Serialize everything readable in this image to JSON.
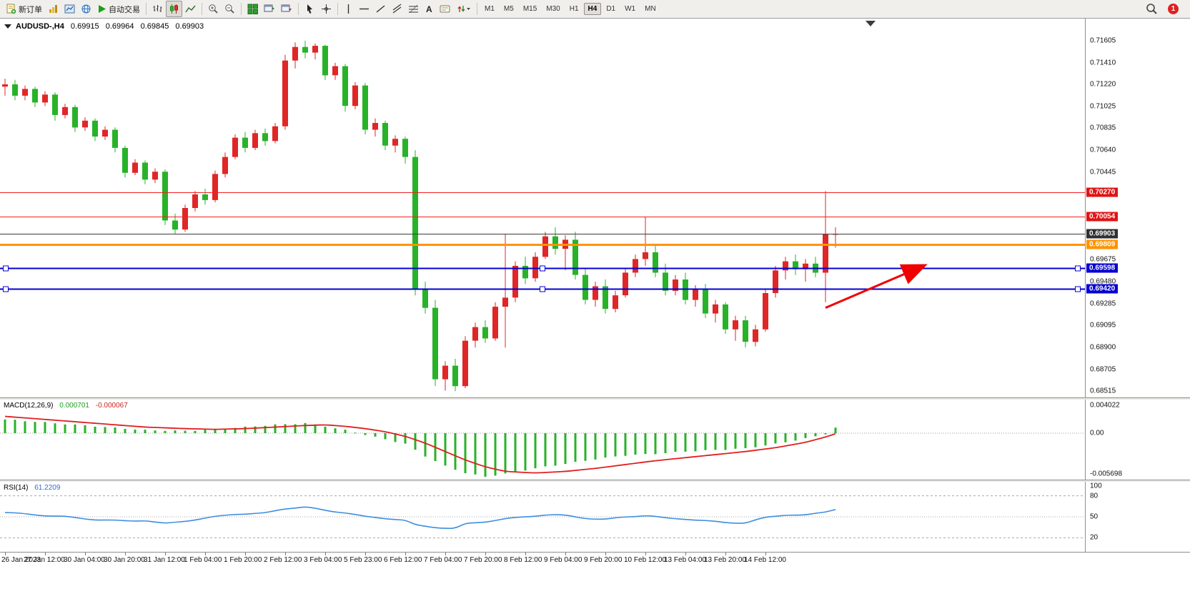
{
  "toolbar": {
    "new_order": "新订单",
    "autotrading": "自动交易",
    "timeframes": [
      "M1",
      "M5",
      "M15",
      "M30",
      "H1",
      "H4",
      "D1",
      "W1",
      "MN"
    ],
    "active_timeframe": "H4",
    "notification_count": "1",
    "icon_names": [
      "new-order",
      "profiles",
      "market-watch",
      "navigator",
      "autotrading",
      "bar-chart",
      "candlestick-chart",
      "line-chart",
      "zoom-in",
      "zoom-out",
      "tile-windows",
      "cascade-windows",
      "arrange-windows",
      "cursor",
      "crosshair",
      "vertical-line",
      "horizontal-line",
      "trendline",
      "equidistant-channel",
      "fibonacci-retracement",
      "text",
      "text-label",
      "arrows",
      "search",
      "notifications"
    ]
  },
  "chart": {
    "symbol": "AUDUSD-,H4",
    "open": "0.69915",
    "high": "0.69964",
    "low": "0.69845",
    "close": "0.69903",
    "type": "candlestick",
    "colors": {
      "up": "#e02626",
      "down": "#28b228"
    },
    "price_axis": {
      "max": 0.718,
      "min": 0.6846,
      "ticks": [
        "0.71605",
        "0.71410",
        "0.71220",
        "0.71025",
        "0.70835",
        "0.70640",
        "0.70445",
        "0.69675",
        "0.69480",
        "0.69285",
        "0.69095",
        "0.68900",
        "0.68705",
        "0.68515"
      ]
    },
    "hlines": [
      {
        "label": "0.70270",
        "color": "#f02020",
        "width": 1,
        "badge": "#e01414",
        "selected": false
      },
      {
        "label": "0.70054",
        "color": "#f02020",
        "width": 1,
        "badge": "#e01414",
        "selected": false
      },
      {
        "label": "0.69903",
        "color": "#3c3c3c",
        "width": 1,
        "badge": "#2f2f2f",
        "selected": false
      },
      {
        "label": "0.69809",
        "color": "#ff9300",
        "width": 3,
        "badge": "#ff9300",
        "selected": false
      },
      {
        "label": "0.69598",
        "color": "#0400d0",
        "width": 2,
        "badge": "#0400d0",
        "selected": true
      },
      {
        "label": "0.69420",
        "color": "#0400d0",
        "width": 2,
        "badge": "#0400d0",
        "selected": true
      }
    ],
    "candles": [
      [
        0.712,
        0.7127,
        0.7112,
        0.7122
      ],
      [
        0.7122,
        0.7126,
        0.7108,
        0.7112
      ],
      [
        0.7112,
        0.7121,
        0.7108,
        0.7118
      ],
      [
        0.7118,
        0.712,
        0.7102,
        0.7106
      ],
      [
        0.7106,
        0.7116,
        0.7103,
        0.7113
      ],
      [
        0.7113,
        0.7115,
        0.709,
        0.7095
      ],
      [
        0.7095,
        0.7105,
        0.7092,
        0.7102
      ],
      [
        0.7102,
        0.7104,
        0.708,
        0.7084
      ],
      [
        0.7084,
        0.7093,
        0.7081,
        0.709
      ],
      [
        0.709,
        0.7092,
        0.7072,
        0.7076
      ],
      [
        0.7076,
        0.7085,
        0.7073,
        0.7082
      ],
      [
        0.7082,
        0.7084,
        0.7062,
        0.7066
      ],
      [
        0.7066,
        0.7068,
        0.704,
        0.7044
      ],
      [
        0.7044,
        0.7056,
        0.7042,
        0.7053
      ],
      [
        0.7053,
        0.7055,
        0.7034,
        0.7038
      ],
      [
        0.7038,
        0.7048,
        0.7035,
        0.7045
      ],
      [
        0.7045,
        0.7047,
        0.6998,
        0.7002
      ],
      [
        0.7002,
        0.7008,
        0.699,
        0.6994
      ],
      [
        0.6994,
        0.7016,
        0.6992,
        0.7013
      ],
      [
        0.7013,
        0.7028,
        0.701,
        0.7025
      ],
      [
        0.7025,
        0.703,
        0.7016,
        0.702
      ],
      [
        0.702,
        0.7046,
        0.7018,
        0.7043
      ],
      [
        0.7043,
        0.7062,
        0.704,
        0.7058
      ],
      [
        0.7058,
        0.7078,
        0.7056,
        0.7075
      ],
      [
        0.7075,
        0.708,
        0.7062,
        0.7066
      ],
      [
        0.7066,
        0.7082,
        0.7064,
        0.7079
      ],
      [
        0.7079,
        0.7083,
        0.7068,
        0.7072
      ],
      [
        0.7072,
        0.7088,
        0.707,
        0.7085
      ],
      [
        0.7085,
        0.7148,
        0.7082,
        0.7143
      ],
      [
        0.7143,
        0.7159,
        0.7136,
        0.7155
      ],
      [
        0.7155,
        0.71605,
        0.7145,
        0.715
      ],
      [
        0.715,
        0.7158,
        0.7144,
        0.7156
      ],
      [
        0.7156,
        0.7157,
        0.7126,
        0.713
      ],
      [
        0.713,
        0.7141,
        0.7126,
        0.7138
      ],
      [
        0.7138,
        0.714,
        0.7098,
        0.7103
      ],
      [
        0.7103,
        0.7124,
        0.71,
        0.7121
      ],
      [
        0.7121,
        0.7123,
        0.7078,
        0.7082
      ],
      [
        0.7082,
        0.7092,
        0.7076,
        0.7088
      ],
      [
        0.7088,
        0.709,
        0.7064,
        0.7068
      ],
      [
        0.7068,
        0.7077,
        0.7062,
        0.7074
      ],
      [
        0.7074,
        0.7076,
        0.7052,
        0.7058
      ],
      [
        0.7058,
        0.7064,
        0.6936,
        0.6942
      ],
      [
        0.6942,
        0.6948,
        0.692,
        0.6925
      ],
      [
        0.6925,
        0.6932,
        0.6856,
        0.6862
      ],
      [
        0.6862,
        0.6878,
        0.6852,
        0.6874
      ],
      [
        0.6874,
        0.688,
        0.68515,
        0.6856
      ],
      [
        0.6856,
        0.69,
        0.6854,
        0.6896
      ],
      [
        0.6896,
        0.6912,
        0.689,
        0.6908
      ],
      [
        0.6908,
        0.6914,
        0.6894,
        0.6898
      ],
      [
        0.6898,
        0.693,
        0.6896,
        0.6926
      ],
      [
        0.6926,
        0.699,
        0.689,
        0.6934
      ],
      [
        0.6934,
        0.6966,
        0.693,
        0.6962
      ],
      [
        0.6962,
        0.697,
        0.6946,
        0.6951
      ],
      [
        0.6951,
        0.6974,
        0.6948,
        0.697
      ],
      [
        0.697,
        0.6992,
        0.6968,
        0.6988
      ],
      [
        0.6988,
        0.6996,
        0.6972,
        0.6977
      ],
      [
        0.6977,
        0.6989,
        0.6958,
        0.6985
      ],
      [
        0.6985,
        0.6992,
        0.695,
        0.6954
      ],
      [
        0.6954,
        0.696,
        0.6928,
        0.6932
      ],
      [
        0.6932,
        0.6948,
        0.6926,
        0.6944
      ],
      [
        0.6944,
        0.695,
        0.692,
        0.6924
      ],
      [
        0.6924,
        0.694,
        0.6921,
        0.6936
      ],
      [
        0.6936,
        0.696,
        0.6934,
        0.6956
      ],
      [
        0.6956,
        0.6972,
        0.6952,
        0.6968
      ],
      [
        0.6968,
        0.7005,
        0.6962,
        0.6974
      ],
      [
        0.6974,
        0.698,
        0.6952,
        0.6956
      ],
      [
        0.6956,
        0.6964,
        0.6936,
        0.694
      ],
      [
        0.694,
        0.6954,
        0.6936,
        0.695
      ],
      [
        0.695,
        0.6956,
        0.6928,
        0.6932
      ],
      [
        0.6932,
        0.6945,
        0.6926,
        0.6941
      ],
      [
        0.6941,
        0.6946,
        0.6916,
        0.692
      ],
      [
        0.692,
        0.6932,
        0.6912,
        0.6928
      ],
      [
        0.6928,
        0.693,
        0.6902,
        0.6906
      ],
      [
        0.6906,
        0.6918,
        0.6896,
        0.6914
      ],
      [
        0.6914,
        0.6918,
        0.689,
        0.6895
      ],
      [
        0.6895,
        0.691,
        0.6891,
        0.6906
      ],
      [
        0.6906,
        0.6942,
        0.6904,
        0.6938
      ],
      [
        0.6938,
        0.6962,
        0.6934,
        0.6958
      ],
      [
        0.6958,
        0.697,
        0.695,
        0.6966
      ],
      [
        0.6966,
        0.6972,
        0.6954,
        0.6959
      ],
      [
        0.6959,
        0.6968,
        0.6948,
        0.6964
      ],
      [
        0.6964,
        0.697,
        0.6952,
        0.6956
      ],
      [
        0.6956,
        0.7028,
        0.693,
        0.699
      ],
      [
        0.699,
        0.6996,
        0.6978,
        0.69903
      ]
    ],
    "time_labels": [
      "26 Jan 2023",
      "27 Jan 12:00",
      "30 Jan 04:00",
      "30 Jan 20:00",
      "31 Jan 12:00",
      "1 Feb 04:00",
      "1 Feb 20:00",
      "2 Feb 12:00",
      "3 Feb 04:00",
      "5 Feb 23:00",
      "6 Feb 12:00",
      "7 Feb 04:00",
      "7 Feb 20:00",
      "8 Feb 12:00",
      "9 Feb 04:00",
      "9 Feb 20:00",
      "10 Feb 12:00",
      "13 Feb 04:00",
      "13 Feb 20:00",
      "14 Feb 12:00"
    ],
    "trend_arrow": {
      "from_index": 82,
      "from_price": 0.6925,
      "to_index": 91.8,
      "to_price": 0.6962,
      "color": "#f00000"
    },
    "shift_marker_index": 86.5
  },
  "macd": {
    "name": "MACD(12,26,9)",
    "main": "0.000701",
    "signal": "-0.000067",
    "axis": [
      "0.004022",
      "0.00",
      "-0.005698"
    ],
    "range": {
      "max": 0.004022,
      "min": -0.005698
    },
    "hist": [
      [
        0,
        0.0018
      ],
      [
        5,
        0.0013
      ],
      [
        10,
        0.0008
      ],
      [
        14,
        0.0004
      ],
      [
        18,
        0.0003
      ],
      [
        21,
        0.0005
      ],
      [
        24,
        0.0008
      ],
      [
        27,
        0.0011
      ],
      [
        30,
        0.0013
      ],
      [
        32,
        0.0009
      ],
      [
        34,
        0.0004
      ],
      [
        36,
        -0.0002
      ],
      [
        38,
        -0.0008
      ],
      [
        40,
        -0.0014
      ],
      [
        42,
        -0.003
      ],
      [
        44,
        -0.0043
      ],
      [
        46,
        -0.0052
      ],
      [
        48,
        -0.0057
      ],
      [
        50,
        -0.0053
      ],
      [
        53,
        -0.0046
      ],
      [
        56,
        -0.004
      ],
      [
        59,
        -0.0034
      ],
      [
        62,
        -0.0029
      ],
      [
        65,
        -0.0027
      ],
      [
        68,
        -0.0024
      ],
      [
        71,
        -0.0022
      ],
      [
        74,
        -0.002
      ],
      [
        77,
        -0.0014
      ],
      [
        80,
        -0.0007
      ],
      [
        82,
        -0.0001
      ],
      [
        83,
        0.000701
      ]
    ],
    "signal_line": [
      [
        0,
        0.0022
      ],
      [
        5,
        0.0017
      ],
      [
        10,
        0.0012
      ],
      [
        14,
        0.0008
      ],
      [
        18,
        0.0006
      ],
      [
        21,
        0.0005
      ],
      [
        24,
        0.0006
      ],
      [
        27,
        0.0008
      ],
      [
        30,
        0.001
      ],
      [
        32,
        0.0011
      ],
      [
        34,
        0.0009
      ],
      [
        36,
        0.0006
      ],
      [
        38,
        0.0002
      ],
      [
        40,
        -0.0004
      ],
      [
        42,
        -0.0013
      ],
      [
        44,
        -0.0024
      ],
      [
        46,
        -0.0035
      ],
      [
        48,
        -0.0044
      ],
      [
        50,
        -0.005
      ],
      [
        53,
        -0.0052
      ],
      [
        56,
        -0.005
      ],
      [
        59,
        -0.0046
      ],
      [
        62,
        -0.0041
      ],
      [
        65,
        -0.0036
      ],
      [
        68,
        -0.0032
      ],
      [
        71,
        -0.0028
      ],
      [
        74,
        -0.0024
      ],
      [
        77,
        -0.0019
      ],
      [
        80,
        -0.0012
      ],
      [
        82,
        -0.0005
      ],
      [
        83,
        -6.7e-05
      ]
    ],
    "colors": {
      "histogram": "#28b228",
      "signal": "#e01f1f"
    }
  },
  "rsi": {
    "name": "RSI(14)",
    "value": "61.2209",
    "axis": [
      "100",
      "80",
      "50",
      "20"
    ],
    "levels": [
      80,
      50,
      20
    ],
    "color": "#3e8ede",
    "points": [
      [
        0,
        56
      ],
      [
        3,
        53
      ],
      [
        6,
        50
      ],
      [
        9,
        46
      ],
      [
        12,
        44
      ],
      [
        14,
        45
      ],
      [
        16,
        40
      ],
      [
        18,
        44
      ],
      [
        21,
        50
      ],
      [
        23,
        54
      ],
      [
        26,
        55
      ],
      [
        28,
        62
      ],
      [
        30,
        64
      ],
      [
        32,
        59
      ],
      [
        34,
        56
      ],
      [
        36,
        50
      ],
      [
        38,
        48
      ],
      [
        40,
        45
      ],
      [
        41,
        38
      ],
      [
        43,
        35
      ],
      [
        45,
        33
      ],
      [
        46,
        40
      ],
      [
        48,
        43
      ],
      [
        50,
        47
      ],
      [
        52,
        50
      ],
      [
        54,
        53
      ],
      [
        56,
        52
      ],
      [
        58,
        48
      ],
      [
        60,
        46
      ],
      [
        62,
        50
      ],
      [
        64,
        52
      ],
      [
        66,
        48
      ],
      [
        68,
        47
      ],
      [
        70,
        44
      ],
      [
        72,
        42
      ],
      [
        74,
        41
      ],
      [
        76,
        49
      ],
      [
        78,
        53
      ],
      [
        80,
        52
      ],
      [
        82,
        57
      ],
      [
        83,
        61.22
      ]
    ]
  }
}
